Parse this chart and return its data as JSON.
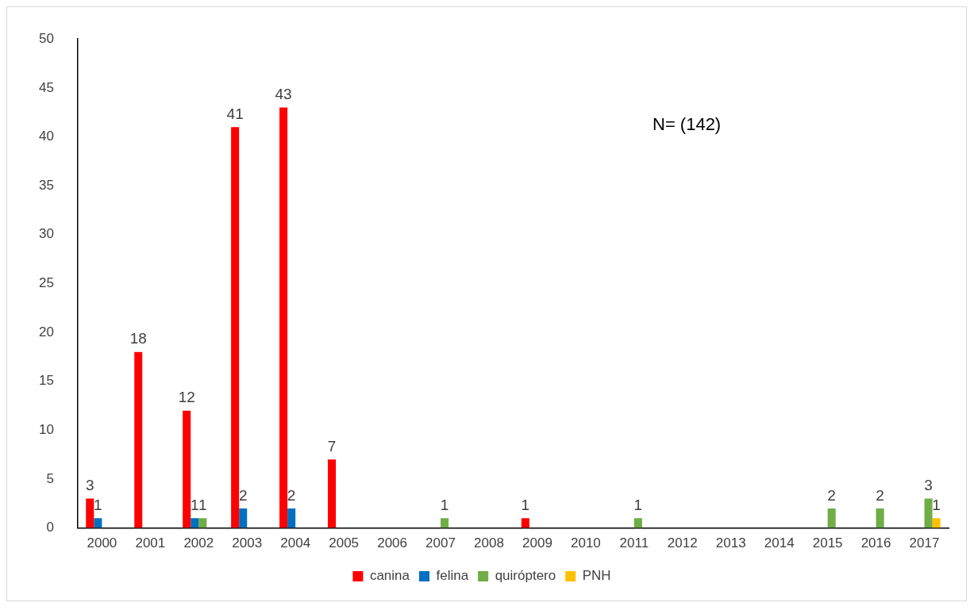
{
  "chart_data": {
    "type": "bar",
    "categories": [
      "2000",
      "2001",
      "2002",
      "2003",
      "2004",
      "2005",
      "2006",
      "2007",
      "2008",
      "2009",
      "2010",
      "2011",
      "2012",
      "2013",
      "2014",
      "2015",
      "2016",
      "2017"
    ],
    "series": [
      {
        "name": "canina",
        "color": "#ff0000",
        "values": [
          3,
          18,
          12,
          41,
          43,
          7,
          null,
          null,
          null,
          1,
          null,
          null,
          null,
          null,
          null,
          null,
          null,
          null
        ]
      },
      {
        "name": "felina",
        "color": "#0070c0",
        "values": [
          1,
          null,
          1,
          2,
          2,
          null,
          null,
          null,
          null,
          null,
          null,
          null,
          null,
          null,
          null,
          null,
          null,
          null
        ]
      },
      {
        "name": "quiróptero",
        "color": "#70ad47",
        "values": [
          null,
          null,
          1,
          null,
          null,
          null,
          null,
          1,
          null,
          null,
          null,
          1,
          null,
          null,
          null,
          2,
          2,
          3
        ]
      },
      {
        "name": "PNH",
        "color": "#ffc000",
        "values": [
          null,
          null,
          null,
          null,
          null,
          null,
          null,
          null,
          null,
          null,
          null,
          null,
          null,
          null,
          null,
          null,
          null,
          1
        ]
      }
    ],
    "ylim": [
      0,
      50
    ],
    "yticks": [
      0,
      5,
      10,
      15,
      20,
      25,
      30,
      35,
      40,
      45,
      50
    ],
    "grid": false,
    "legend": "bottom",
    "data_labels": true,
    "annotations": [
      "N= (142)"
    ]
  }
}
